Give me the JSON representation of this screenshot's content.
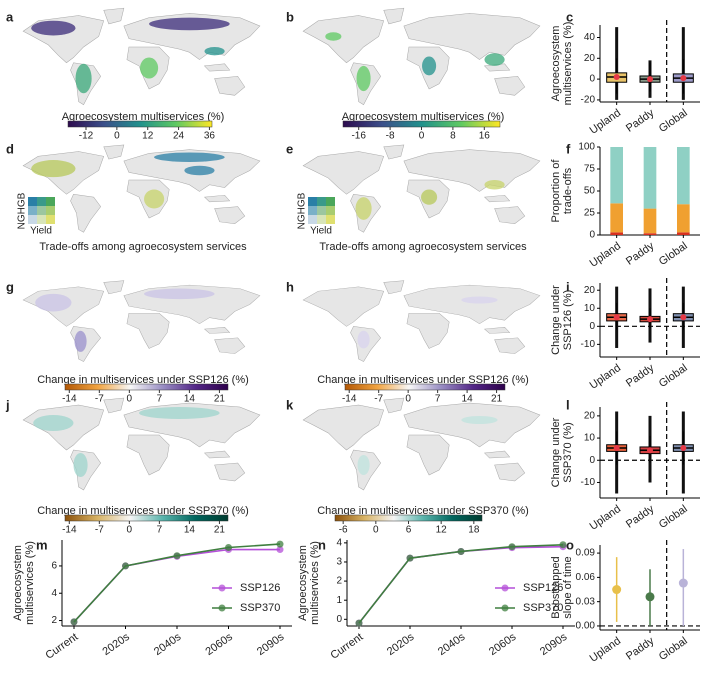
{
  "maps": [
    {
      "panel": "a",
      "caption": "Agroecosystem multiservices (%)",
      "colorbar": {
        "lim": [
          -19,
          37
        ],
        "ticks": [
          -12,
          0,
          12,
          24,
          36
        ],
        "colors": [
          "#2d0b4e",
          "#3b4f8a",
          "#21918c",
          "#5ec962",
          "#fde725"
        ]
      }
    },
    {
      "panel": "b",
      "caption": "Agroecosystem multiservices (%)",
      "colorbar": {
        "lim": [
          -20,
          20
        ],
        "ticks": [
          -16,
          -8,
          0,
          8,
          16
        ],
        "colors": [
          "#2d0b4e",
          "#3b4f8a",
          "#21918c",
          "#5ec962",
          "#fde725"
        ]
      }
    },
    {
      "panel": "d",
      "caption": "Trade-offs among agroecosystem services",
      "inset": {
        "y_label": "NGHGB",
        "x_label": "Yield"
      }
    },
    {
      "panel": "e",
      "caption": "Trade-offs among agroecosystem services",
      "inset": {
        "y_label": "NGHGB",
        "x_label": "Yield"
      }
    },
    {
      "panel": "g",
      "caption": "Change in multiservices under SSP126 (%)",
      "colorbar": {
        "lim": [
          -15,
          23
        ],
        "ticks": [
          -14,
          -7,
          0,
          7,
          14,
          21
        ],
        "colors": [
          "#b35806",
          "#f1a340",
          "#f7f7f7",
          "#998ec3",
          "#542788",
          "#2d004b"
        ]
      }
    },
    {
      "panel": "h",
      "caption": "Change in multiservices under SSP126 (%)",
      "colorbar": {
        "lim": [
          -15,
          23
        ],
        "ticks": [
          -14,
          -7,
          0,
          7,
          14,
          21
        ],
        "colors": [
          "#b35806",
          "#f1a340",
          "#f7f7f7",
          "#998ec3",
          "#542788",
          "#2d004b"
        ]
      }
    },
    {
      "panel": "j",
      "caption": "Change in multiservices under SSP370 (%)",
      "colorbar": {
        "lim": [
          -15,
          23
        ],
        "ticks": [
          -14,
          -7,
          0,
          7,
          14,
          21
        ],
        "colors": [
          "#8c510a",
          "#d8b365",
          "#f5f5f5",
          "#5ab4ac",
          "#01665e",
          "#003c30"
        ]
      }
    },
    {
      "panel": "k",
      "caption": "Change in multiservices under SSP370 (%)",
      "colorbar": {
        "lim": [
          -7.5,
          19.5
        ],
        "ticks": [
          -6,
          0,
          6,
          12,
          18
        ],
        "colors": [
          "#8c510a",
          "#d8b365",
          "#f5f5f5",
          "#5ab4ac",
          "#01665e",
          "#003c30"
        ]
      }
    }
  ],
  "chart_data": [
    {
      "panel": "c",
      "type": "box",
      "y_label": [
        "Agroecosystem",
        "multiservices (%)"
      ],
      "categories": [
        "Upland",
        "Paddy",
        "Global"
      ],
      "colors": [
        "#e9c46a",
        "#8a9a8a",
        "#9c9ac8"
      ],
      "mean_color": "#e63946",
      "range_low": [
        -20,
        -18,
        -20
      ],
      "whisker_low": [
        -14,
        -12,
        -14
      ],
      "q1": [
        -3,
        -3,
        -3
      ],
      "median": [
        2,
        0,
        1
      ],
      "q3": [
        6,
        3,
        5
      ],
      "whisker_high": [
        20,
        16,
        19
      ],
      "range_high": [
        50,
        18,
        50
      ],
      "mean": [
        2,
        0,
        1
      ],
      "ylim": [
        -22,
        52
      ],
      "yticks": [
        -20,
        0,
        20,
        40
      ],
      "separator": true
    },
    {
      "panel": "f",
      "type": "stacked_bar",
      "y_label": [
        "Proportion of",
        "trade-offs"
      ],
      "categories": [
        "Upland",
        "Paddy",
        "Global"
      ],
      "series": [
        {
          "color": "#d7301f",
          "values": [
            3,
            2,
            3
          ]
        },
        {
          "color": "#f0a030",
          "values": [
            33,
            28,
            32
          ]
        },
        {
          "color": "#8fd0c4",
          "values": [
            64,
            70,
            65
          ]
        }
      ],
      "ylim": [
        0,
        100
      ],
      "yticks": [
        0,
        25,
        50,
        75,
        100
      ]
    },
    {
      "panel": "i",
      "type": "box",
      "y_label": [
        "Change under",
        "SSP126 (%)"
      ],
      "categories": [
        "Upland",
        "Paddy",
        "Global"
      ],
      "colors": [
        "#e86a4a",
        "#d04a3a",
        "#8090b0"
      ],
      "mean_color": "#e63946",
      "range_low": [
        -12,
        -9,
        -12
      ],
      "whisker_low": [
        -2,
        -1,
        -2
      ],
      "q1": [
        3,
        2.5,
        3
      ],
      "median": [
        5,
        4,
        5
      ],
      "q3": [
        7,
        5.5,
        7
      ],
      "whisker_high": [
        13,
        10,
        13
      ],
      "range_high": [
        22,
        21,
        22
      ],
      "mean": [
        5,
        4,
        5
      ],
      "ylim": [
        -17,
        24
      ],
      "yticks": [
        -10,
        0,
        10,
        20
      ],
      "separator": true,
      "hline": 0
    },
    {
      "panel": "l",
      "type": "box",
      "y_label": [
        "Change under",
        "SSP370 (%)"
      ],
      "categories": [
        "Upland",
        "Paddy",
        "Global"
      ],
      "colors": [
        "#e8603a",
        "#d04040",
        "#8090b0"
      ],
      "mean_color": "#e63946",
      "range_low": [
        -15,
        -10,
        -15
      ],
      "whisker_low": [
        -2,
        -1,
        -2
      ],
      "q1": [
        4,
        3,
        4
      ],
      "median": [
        5.5,
        4.5,
        5.5
      ],
      "q3": [
        7,
        6,
        7
      ],
      "whisker_high": [
        13,
        11,
        13
      ],
      "range_high": [
        22,
        20,
        22
      ],
      "mean": [
        5.5,
        4.5,
        5.5
      ],
      "ylim": [
        -17,
        24
      ],
      "yticks": [
        -10,
        0,
        10,
        20
      ],
      "separator": true,
      "hline": 0
    },
    {
      "panel": "m",
      "type": "line",
      "y_label": [
        "Agroecosystem",
        "multiservices (%)"
      ],
      "categories": [
        "Current",
        "2020s",
        "2040s",
        "2060s",
        "2090s"
      ],
      "series": [
        {
          "name": "SSP126",
          "color": "#b44fd8",
          "values": [
            1.9,
            6.0,
            6.7,
            7.2,
            7.2
          ]
        },
        {
          "name": "SSP370",
          "color": "#3f7f3f",
          "values": [
            1.9,
            6.0,
            6.75,
            7.35,
            7.6
          ]
        }
      ],
      "ylim": [
        1.6,
        7.9
      ],
      "yticks": [
        2,
        4,
        6
      ],
      "legend": "lower right"
    },
    {
      "panel": "n",
      "type": "line",
      "y_label": [
        "Agroecosystem",
        "multiservices (%)"
      ],
      "categories": [
        "Current",
        "2020s",
        "2040s",
        "2060s",
        "2090s"
      ],
      "series": [
        {
          "name": "SSP126",
          "color": "#b44fd8",
          "values": [
            -0.2,
            3.2,
            3.55,
            3.75,
            3.8
          ]
        },
        {
          "name": "SSP370",
          "color": "#3f7f3f",
          "values": [
            -0.2,
            3.2,
            3.55,
            3.8,
            3.9
          ]
        }
      ],
      "ylim": [
        -0.35,
        4.15
      ],
      "yticks": [
        0,
        1,
        2,
        3,
        4
      ],
      "legend": "lower right"
    },
    {
      "panel": "o",
      "type": "errorbar",
      "y_label": [
        "Boostrapped",
        "slope of time"
      ],
      "categories": [
        "Upland",
        "Paddy",
        "Global"
      ],
      "colors": [
        "#e8c04a",
        "#4a7a4a",
        "#b9b3d8"
      ],
      "values": [
        0.045,
        0.036,
        0.053
      ],
      "low": [
        0.005,
        0.0,
        0.0
      ],
      "high": [
        0.085,
        0.07,
        0.095
      ],
      "ylim": [
        -0.005,
        0.1
      ],
      "yticks": [
        {
          "value": 0,
          "label": "0.00"
        },
        {
          "value": 0.03,
          "label": "0.03"
        },
        {
          "value": 0.06,
          "label": "0.06"
        },
        {
          "value": 0.09,
          "label": "0.09"
        }
      ],
      "separator": true,
      "hline": 0
    }
  ]
}
